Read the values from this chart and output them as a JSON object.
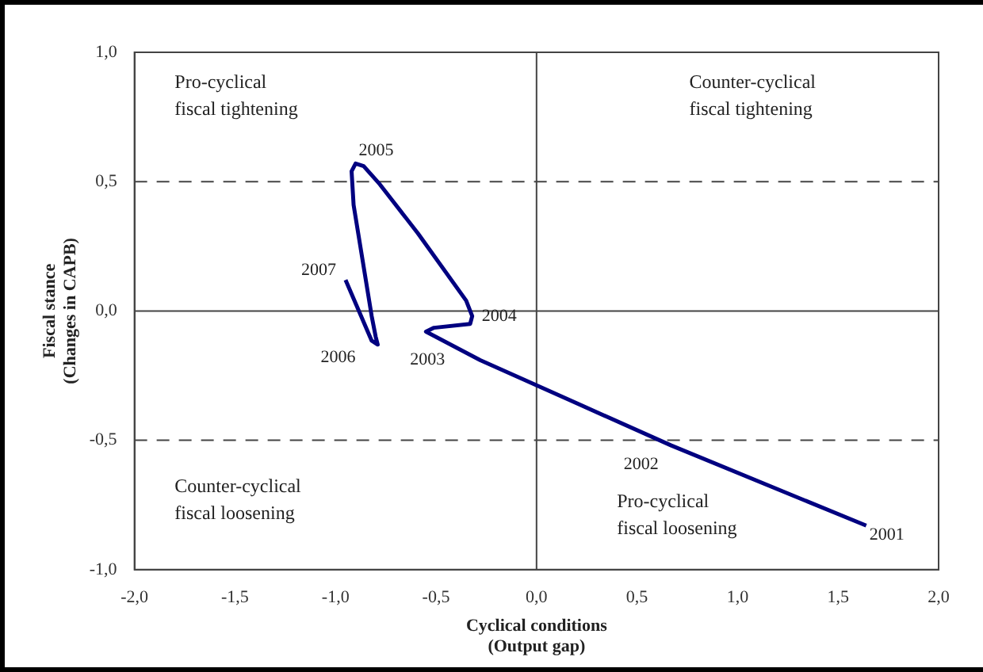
{
  "chart_data": {
    "type": "line",
    "xlabel": "Cyclical conditions\n(Output gap)",
    "ylabel": "Fiscal stance\n(Changes in CAPB)",
    "series": [
      {
        "color": "#000080",
        "x": [
          1.64,
          0.67,
          -0.28,
          -0.55,
          -0.51,
          -0.33,
          -0.32,
          -0.35,
          -0.59,
          -0.78,
          -0.86,
          -0.9,
          -0.92,
          -0.91,
          -0.82,
          -0.8,
          -0.79,
          -0.82,
          -0.95
        ],
        "values": [
          -0.83,
          -0.52,
          -0.19,
          -0.08,
          -0.065,
          -0.05,
          -0.02,
          0.04,
          0.3,
          0.49,
          0.56,
          0.57,
          0.54,
          0.41,
          -0.02,
          -0.1,
          -0.13,
          -0.115,
          0.12
        ]
      }
    ],
    "xlim": [
      -2,
      2
    ],
    "ylim": [
      -1,
      1
    ],
    "xticks": [
      {
        "value": -2,
        "label": "-2,0"
      },
      {
        "value": -1.5,
        "label": "-1,5"
      },
      {
        "value": -1,
        "label": "-1,0"
      },
      {
        "value": -0.5,
        "label": "-0,5"
      },
      {
        "value": 0,
        "label": "0,0"
      },
      {
        "value": 0.5,
        "label": "0,5"
      },
      {
        "value": 1,
        "label": "1,0"
      },
      {
        "value": 1.5,
        "label": "1,5"
      },
      {
        "value": 2,
        "label": "2,0"
      }
    ],
    "yticks": [
      {
        "value": -1,
        "label": "-1,0"
      },
      {
        "value": -0.5,
        "label": "-0,5"
      },
      {
        "value": 0,
        "label": "0,0"
      },
      {
        "value": 0.5,
        "label": "0,5"
      },
      {
        "value": 1,
        "label": "1,0"
      }
    ],
    "ref_lines": [
      {
        "axis": "y",
        "value": 0.5,
        "line_style": "dashed"
      },
      {
        "axis": "y",
        "value": -0.5,
        "line_style": "dashed"
      },
      {
        "axis": "y",
        "value": 0,
        "line_style": "solid"
      },
      {
        "axis": "x",
        "value": 0,
        "line_style": "solid"
      }
    ],
    "marker": "none",
    "line_style": "solid",
    "grid": false,
    "legend": false,
    "annotations": [
      {
        "text": "2001",
        "x": 1.64,
        "y": -0.83
      },
      {
        "text": "2002",
        "x": 0.67,
        "y": -0.52
      },
      {
        "text": "2003",
        "x": -0.55,
        "y": -0.08
      },
      {
        "text": "2004",
        "x": -0.32,
        "y": -0.02
      },
      {
        "text": "2005",
        "x": -0.9,
        "y": 0.57
      },
      {
        "text": "2006",
        "x": -0.79,
        "y": -0.13
      },
      {
        "text": "2007",
        "x": -0.95,
        "y": 0.12
      },
      "Pro-cyclical\nfiscal tightening",
      "Counter-cyclical\nfiscal tightening",
      "Counter-cyclical\nfiscal loosening",
      "Pro-cyclical\nfiscal loosening"
    ]
  }
}
